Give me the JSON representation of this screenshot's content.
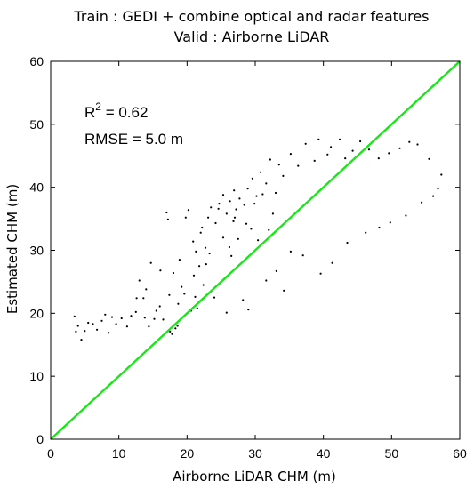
{
  "chart_data": {
    "type": "scatter",
    "title": "Train : GEDI + combine optical and radar features",
    "subtitle": "Valid : Airborne LiDAR",
    "xlabel": "Airborne LiDAR CHM (m)",
    "ylabel": "Estimated CHM (m)",
    "xlim": [
      0,
      60
    ],
    "ylim": [
      0,
      60
    ],
    "xticks": [
      "0",
      "10",
      "20",
      "30",
      "40",
      "50",
      "60"
    ],
    "yticks": [
      "0",
      "10",
      "20",
      "30",
      "40",
      "50",
      "60"
    ],
    "grid": false,
    "annotations": {
      "r2_prefix": "R",
      "r2_sup": "2",
      "r2_value": " = 0.62",
      "rmse": "RMSE = 5.0 m"
    },
    "reference_line": {
      "x": [
        0,
        60
      ],
      "y": [
        0,
        60
      ],
      "color": "#19e619"
    },
    "point_color": "#000000",
    "points": [
      [
        3.5,
        19.5
      ],
      [
        4,
        18
      ],
      [
        4.5,
        15.8
      ],
      [
        5,
        17.2
      ],
      [
        5.5,
        18.5
      ],
      [
        6.2,
        18.3
      ],
      [
        8,
        19.8
      ],
      [
        8.5,
        16.9
      ],
      [
        9,
        19.4
      ],
      [
        11.2,
        17.9
      ],
      [
        11.8,
        19.6
      ],
      [
        12.5,
        20.2
      ],
      [
        13,
        25.2
      ],
      [
        13.6,
        22.4
      ],
      [
        14,
        23.8
      ],
      [
        14.7,
        28
      ],
      [
        15.2,
        19.1
      ],
      [
        15.5,
        20.4
      ],
      [
        16,
        21.1
      ],
      [
        16.5,
        19
      ],
      [
        17,
        36
      ],
      [
        17.2,
        34.9
      ],
      [
        17.5,
        17.1
      ],
      [
        17.8,
        16.7
      ],
      [
        18,
        26.4
      ],
      [
        18.3,
        17.6
      ],
      [
        18.6,
        18
      ],
      [
        18.9,
        28.5
      ],
      [
        19.2,
        24.2
      ],
      [
        19.8,
        35.2
      ],
      [
        20.2,
        36.4
      ],
      [
        20.6,
        20.4
      ],
      [
        21,
        26
      ],
      [
        21.5,
        20.8
      ],
      [
        22,
        32.8
      ],
      [
        22.4,
        24.5
      ],
      [
        22.8,
        27.8
      ],
      [
        23.3,
        29.5
      ],
      [
        24,
        22.5
      ],
      [
        24.6,
        36.6
      ],
      [
        25.3,
        32
      ],
      [
        25.8,
        20.1
      ],
      [
        26.2,
        30.5
      ],
      [
        26.5,
        29.1
      ],
      [
        27,
        35.2
      ],
      [
        27.5,
        31.8
      ],
      [
        28.2,
        22.1
      ],
      [
        28.7,
        34.2
      ],
      [
        29,
        20.6
      ],
      [
        29.4,
        33.4
      ],
      [
        26.8,
        34.6
      ],
      [
        29.9,
        37.4
      ],
      [
        30.4,
        31.6
      ],
      [
        31.1,
        38.9
      ],
      [
        31.6,
        25.2
      ],
      [
        32,
        33.2
      ],
      [
        32.6,
        35.8
      ],
      [
        33.1,
        26.7
      ],
      [
        34.2,
        23.6
      ],
      [
        35.2,
        29.8
      ],
      [
        37,
        29.2
      ],
      [
        39.6,
        26.3
      ],
      [
        41.3,
        28
      ],
      [
        43.5,
        31.2
      ],
      [
        46.2,
        32.8
      ],
      [
        48.2,
        33.6
      ],
      [
        49.8,
        34.4
      ],
      [
        52.1,
        35.5
      ],
      [
        54.4,
        37.6
      ],
      [
        56.1,
        38.6
      ],
      [
        57.3,
        42
      ],
      [
        56.8,
        39.8
      ],
      [
        55.5,
        44.5
      ],
      [
        53.8,
        46.8
      ],
      [
        52.6,
        47.2
      ],
      [
        51.2,
        46.2
      ],
      [
        49.6,
        45.4
      ],
      [
        48.1,
        44.6
      ],
      [
        46.7,
        46
      ],
      [
        45.4,
        47.3
      ],
      [
        44.3,
        45.8
      ],
      [
        43.2,
        44.6
      ],
      [
        42.4,
        47.6
      ],
      [
        41.1,
        46.4
      ],
      [
        40.6,
        45.2
      ],
      [
        39.3,
        47.6
      ],
      [
        38.7,
        44.2
      ],
      [
        37.4,
        46.9
      ],
      [
        36.3,
        43.4
      ],
      [
        35.2,
        45.3
      ],
      [
        34.1,
        41.8
      ],
      [
        33.5,
        43.6
      ],
      [
        33,
        39.1
      ],
      [
        32.2,
        44.4
      ],
      [
        31.6,
        40.6
      ],
      [
        30.8,
        42.4
      ],
      [
        30.2,
        38.6
      ],
      [
        29.6,
        41.4
      ],
      [
        28.9,
        39.8
      ],
      [
        28.4,
        37.2
      ],
      [
        27.7,
        38.2
      ],
      [
        27.2,
        36.5
      ],
      [
        26.9,
        39.5
      ],
      [
        26.3,
        37.8
      ],
      [
        25.8,
        35.8
      ],
      [
        25.3,
        38.8
      ],
      [
        24.7,
        37.4
      ],
      [
        24.2,
        34.3
      ],
      [
        23.5,
        36.8
      ],
      [
        23.1,
        35.2
      ],
      [
        22.7,
        30.4
      ],
      [
        22.2,
        33.6
      ],
      [
        21.8,
        27.5
      ],
      [
        21.3,
        29.8
      ],
      [
        20.9,
        31.4
      ],
      [
        21.2,
        22.6
      ],
      [
        19.6,
        23.1
      ],
      [
        18.7,
        21.5
      ],
      [
        17.4,
        22.9
      ],
      [
        16.1,
        26.8
      ],
      [
        14.4,
        17.9
      ],
      [
        13.8,
        19.3
      ],
      [
        12.6,
        22.4
      ],
      [
        10.4,
        19.2
      ],
      [
        9.6,
        18.3
      ],
      [
        7.5,
        18.8
      ],
      [
        6.8,
        17.4
      ],
      [
        3.7,
        17.1
      ]
    ]
  }
}
